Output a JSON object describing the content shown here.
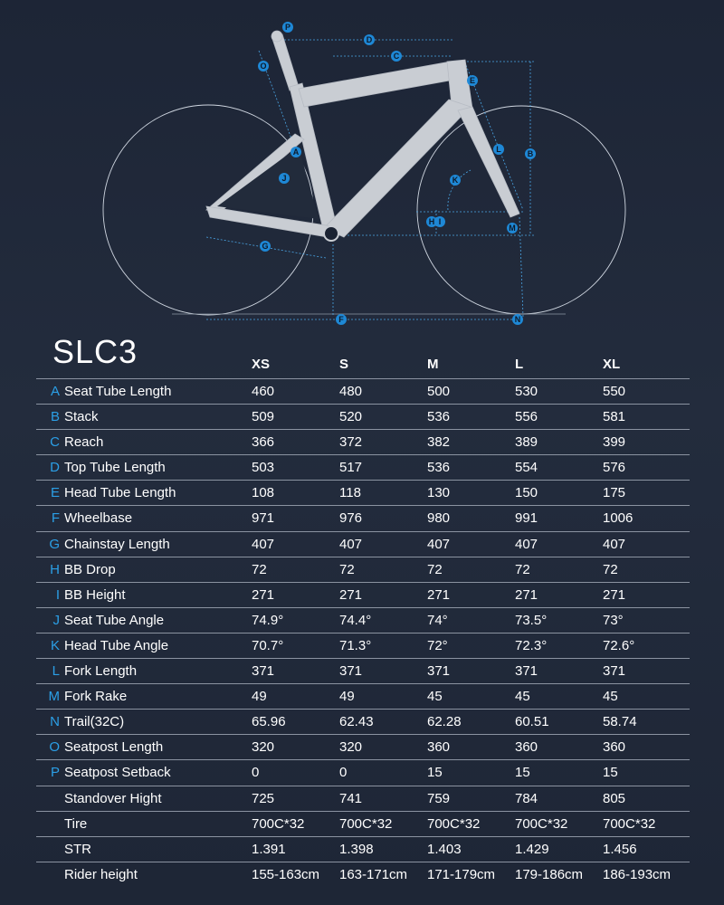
{
  "title": "SLC3",
  "sizes": [
    "XS",
    "S",
    "M",
    "L",
    "XL"
  ],
  "rows": [
    {
      "letter": "A",
      "label": "Seat Tube Length",
      "values": [
        "460",
        "480",
        "500",
        "530",
        "550"
      ]
    },
    {
      "letter": "B",
      "label": "Stack",
      "values": [
        "509",
        "520",
        "536",
        "556",
        "581"
      ]
    },
    {
      "letter": "C",
      "label": "Reach",
      "values": [
        "366",
        "372",
        "382",
        "389",
        "399"
      ]
    },
    {
      "letter": "D",
      "label": "Top Tube Length",
      "values": [
        "503",
        "517",
        "536",
        "554",
        "576"
      ]
    },
    {
      "letter": "E",
      "label": "Head Tube Length",
      "values": [
        "108",
        "118",
        "130",
        "150",
        "175"
      ]
    },
    {
      "letter": "F",
      "label": "Wheelbase",
      "values": [
        "971",
        "976",
        "980",
        "991",
        "1006"
      ]
    },
    {
      "letter": "G",
      "label": "Chainstay Length",
      "values": [
        "407",
        "407",
        "407",
        "407",
        "407"
      ]
    },
    {
      "letter": "H",
      "label": "BB Drop",
      "values": [
        "72",
        "72",
        "72",
        "72",
        "72"
      ]
    },
    {
      "letter": "I",
      "label": "BB Height",
      "values": [
        "271",
        "271",
        "271",
        "271",
        "271"
      ]
    },
    {
      "letter": "J",
      "label": "Seat Tube Angle",
      "values": [
        "74.9°",
        "74.4°",
        "74°",
        "73.5°",
        "73°"
      ]
    },
    {
      "letter": "K",
      "label": "Head Tube Angle",
      "values": [
        "70.7°",
        "71.3°",
        "72°",
        "72.3°",
        "72.6°"
      ]
    },
    {
      "letter": "L",
      "label": "Fork Length",
      "values": [
        "371",
        "371",
        "371",
        "371",
        "371"
      ]
    },
    {
      "letter": "M",
      "label": "Fork Rake",
      "values": [
        "49",
        "49",
        "45",
        "45",
        "45"
      ]
    },
    {
      "letter": "N",
      "label": "Trail(32C)",
      "values": [
        "65.96",
        "62.43",
        "62.28",
        "60.51",
        "58.74"
      ]
    },
    {
      "letter": "O",
      "label": "Seatpost Length",
      "values": [
        "320",
        "320",
        "360",
        "360",
        "360"
      ]
    },
    {
      "letter": "P",
      "label": "Seatpost Setback",
      "values": [
        "0",
        "0",
        "15",
        "15",
        "15"
      ]
    },
    {
      "letter": "",
      "label": "Standover Hight",
      "values": [
        "725",
        "741",
        "759",
        "784",
        "805"
      ]
    },
    {
      "letter": "",
      "label": "Tire",
      "values": [
        "700C*32",
        "700C*32",
        "700C*32",
        "700C*32",
        "700C*32"
      ]
    },
    {
      "letter": "",
      "label": "STR",
      "values": [
        "1.391",
        "1.398",
        "1.403",
        "1.429",
        "1.456"
      ]
    },
    {
      "letter": "",
      "label": "Rider height",
      "values": [
        "155-163cm",
        "163-171cm",
        "171-179cm",
        "179-186cm",
        "186-193cm"
      ]
    }
  ],
  "diagram_labels": [
    "A",
    "B",
    "C",
    "D",
    "E",
    "F",
    "G",
    "H",
    "I",
    "J",
    "K",
    "L",
    "M",
    "N",
    "O",
    "P"
  ],
  "colors": {
    "accent": "#2b9fe6",
    "frame": "#c9cdd3",
    "background": "#1f2737"
  }
}
